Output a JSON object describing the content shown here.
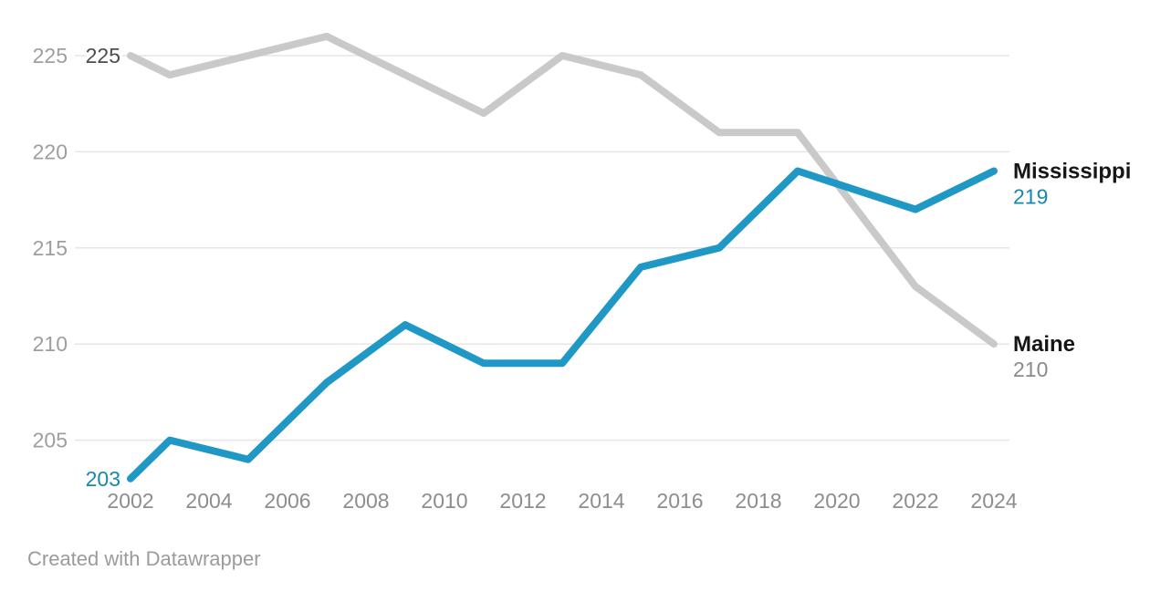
{
  "chart_data": {
    "type": "line",
    "title": "",
    "x": [
      2002,
      2003,
      2005,
      2007,
      2009,
      2011,
      2013,
      2015,
      2017,
      2019,
      2022,
      2024
    ],
    "series": [
      {
        "name": "Maine",
        "values": [
          225,
          224,
          225,
          226,
          224,
          222,
          225,
          224,
          221,
          221,
          213,
          210
        ],
        "color": "#c9c9c9",
        "name_label": "Maine",
        "name_color": "#161616",
        "start_label": "225",
        "start_label_color": "#4d4d4d",
        "end_label": "210",
        "end_label_color": "#8a8a8a"
      },
      {
        "name": "Mississippi",
        "values": [
          203,
          205,
          204,
          208,
          211,
          209,
          209,
          214,
          215,
          219,
          217,
          219
        ],
        "color": "#1f98c6",
        "name_label": "Mississippi",
        "name_color": "#161616",
        "start_label": "203",
        "start_label_color": "#1887b0",
        "end_label": "219",
        "end_label_color": "#1887b0"
      }
    ],
    "yticks": [
      225,
      220,
      215,
      210,
      205
    ],
    "xticks": [
      2002,
      2004,
      2006,
      2008,
      2010,
      2012,
      2014,
      2016,
      2018,
      2020,
      2022,
      2024
    ],
    "ylim": [
      202,
      227
    ],
    "xlabel": "",
    "ylabel": "",
    "grid": "horizontal",
    "legend_position": "direct-labels-at-line-end"
  },
  "colors": {
    "mississippi_line": "#1f98c6",
    "maine_line": "#c9c9c9",
    "gridline": "#e6e6e6",
    "y_tick_label": "#9e9e9e",
    "x_tick_label": "#8d8d8d",
    "series_name": "#161616",
    "footer": "#9b9b9b"
  },
  "footer": {
    "credit": "Created with Datawrapper"
  }
}
